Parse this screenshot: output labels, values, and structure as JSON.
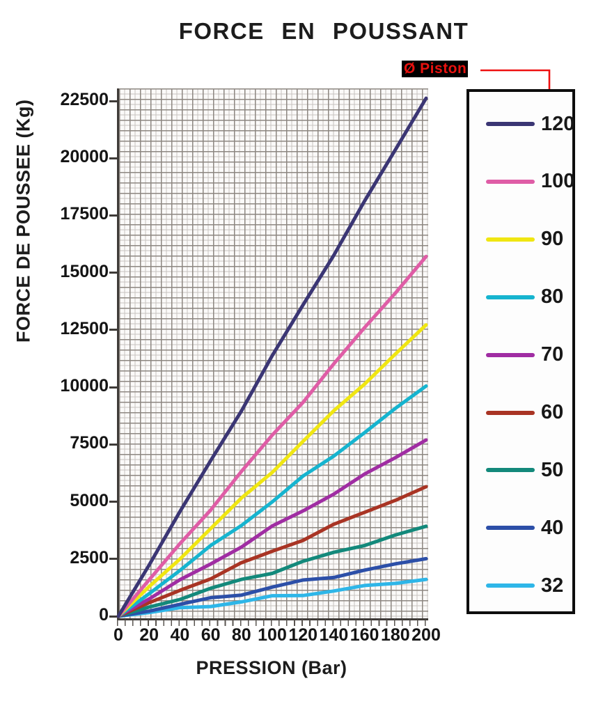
{
  "title": "FORCE EN POUSSANT",
  "annotation": {
    "label": "Ø Piston",
    "text_color": "#e8120f",
    "background": "#000000",
    "line_color": "#ee1111"
  },
  "chart_data": {
    "type": "line",
    "title": "FORCE EN POUSSANT",
    "xlabel": "PRESSION (Bar)",
    "ylabel": "FORCE DE POUSSEE (Kg)",
    "xlim": [
      0,
      200
    ],
    "ylim": [
      0,
      22500
    ],
    "x_ticks": [
      0,
      20,
      40,
      60,
      80,
      100,
      120,
      140,
      160,
      180,
      200
    ],
    "y_ticks": [
      0,
      2500,
      5000,
      7500,
      10000,
      12500,
      15000,
      17500,
      20000,
      22500
    ],
    "grid": true,
    "legend_title": "Ø Piston",
    "legend_position": "right",
    "x": [
      0,
      20,
      40,
      60,
      80,
      100,
      120,
      140,
      160,
      180,
      200
    ],
    "series": [
      {
        "name": "120",
        "color": "#3b3674",
        "values": [
          0,
          2262,
          4524,
          6786,
          9048,
          11310,
          13572,
          15834,
          18096,
          20358,
          22620
        ]
      },
      {
        "name": "100",
        "color": "#df5da6",
        "values": [
          0,
          1571,
          3142,
          4712,
          6283,
          7854,
          9425,
          10996,
          12566,
          14137,
          15708
        ]
      },
      {
        "name": "90",
        "color": "#f0e612",
        "values": [
          0,
          1272,
          2545,
          3817,
          5089,
          6362,
          7634,
          8906,
          10179,
          11451,
          12723
        ]
      },
      {
        "name": "80",
        "color": "#16b4cf",
        "values": [
          0,
          1005,
          2011,
          3016,
          4021,
          5027,
          6032,
          7037,
          8042,
          9048,
          10053
        ]
      },
      {
        "name": "70",
        "color": "#a02da3",
        "values": [
          0,
          770,
          1539,
          2309,
          3079,
          3848,
          4618,
          5388,
          6158,
          6927,
          7697
        ]
      },
      {
        "name": "60",
        "color": "#a93424",
        "values": [
          0,
          565,
          1131,
          1696,
          2262,
          2827,
          3393,
          3958,
          4524,
          5089,
          5655
        ]
      },
      {
        "name": "50",
        "color": "#13897b",
        "values": [
          0,
          393,
          785,
          1178,
          1571,
          1963,
          2356,
          2749,
          3142,
          3534,
          3927
        ]
      },
      {
        "name": "40",
        "color": "#2c4fa8",
        "values": [
          0,
          251,
          503,
          754,
          1005,
          1257,
          1508,
          1759,
          2011,
          2262,
          2513
        ]
      },
      {
        "name": "32",
        "color": "#2eb6e8",
        "values": [
          0,
          161,
          322,
          483,
          643,
          804,
          965,
          1126,
          1287,
          1448,
          1608
        ]
      }
    ]
  }
}
